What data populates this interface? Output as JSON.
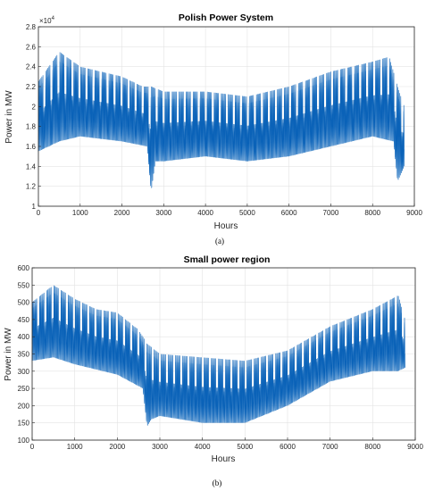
{
  "chart_data": [
    {
      "type": "line",
      "title": "Polish Power System",
      "xlabel": "Hours",
      "ylabel": "Power in MW",
      "exponent_label": "×10",
      "exponent_power": "4",
      "caption": "(a)",
      "xlim": [
        0,
        9000
      ],
      "ylim": [
        1.0,
        2.8
      ],
      "x_ticks": [
        "0",
        "1000",
        "2000",
        "3000",
        "4000",
        "5000",
        "6000",
        "7000",
        "8000",
        "9000"
      ],
      "y_ticks": [
        "1",
        "1.2",
        "1.4",
        "1.6",
        "1.8",
        "2",
        "2.2",
        "2.4",
        "2.6",
        "2.8"
      ],
      "grid": true,
      "series": [
        {
          "color": "#0a62b8",
          "daily_peak": [
            [
              0,
              2.25
            ],
            [
              500,
              2.55
            ],
            [
              1000,
              2.4
            ],
            [
              1500,
              2.35
            ],
            [
              2000,
              2.3
            ],
            [
              2500,
              2.2
            ],
            [
              2700,
              2.2
            ],
            [
              3000,
              2.15
            ],
            [
              4000,
              2.15
            ],
            [
              5000,
              2.1
            ],
            [
              6000,
              2.2
            ],
            [
              7000,
              2.35
            ],
            [
              8000,
              2.45
            ],
            [
              8400,
              2.5
            ],
            [
              8600,
              2.2
            ],
            [
              8760,
              2.0
            ]
          ],
          "daily_trough": [
            [
              0,
              1.55
            ],
            [
              500,
              1.65
            ],
            [
              1000,
              1.7
            ],
            [
              2000,
              1.65
            ],
            [
              2600,
              1.6
            ],
            [
              2700,
              1.15
            ],
            [
              2800,
              1.45
            ],
            [
              3000,
              1.45
            ],
            [
              4000,
              1.5
            ],
            [
              5000,
              1.45
            ],
            [
              6000,
              1.5
            ],
            [
              7000,
              1.6
            ],
            [
              8000,
              1.7
            ],
            [
              8500,
              1.65
            ],
            [
              8600,
              1.25
            ],
            [
              8760,
              1.4
            ]
          ]
        }
      ]
    },
    {
      "type": "line",
      "title": "Small power region",
      "xlabel": "Hours",
      "ylabel": "Power in MW",
      "caption": "(b)",
      "xlim": [
        0,
        9000
      ],
      "ylim": [
        100,
        600
      ],
      "x_ticks": [
        "0",
        "1000",
        "2000",
        "3000",
        "4000",
        "5000",
        "6000",
        "7000",
        "8000",
        "9000"
      ],
      "y_ticks": [
        "100",
        "150",
        "200",
        "250",
        "300",
        "350",
        "400",
        "450",
        "500",
        "550",
        "600"
      ],
      "grid": true,
      "series": [
        {
          "color": "#0a62b8",
          "daily_peak": [
            [
              0,
              500
            ],
            [
              500,
              550
            ],
            [
              1000,
              510
            ],
            [
              1500,
              480
            ],
            [
              2000,
              470
            ],
            [
              2500,
              420
            ],
            [
              2700,
              380
            ],
            [
              3000,
              350
            ],
            [
              4000,
              340
            ],
            [
              5000,
              330
            ],
            [
              6000,
              360
            ],
            [
              7000,
              430
            ],
            [
              8000,
              480
            ],
            [
              8600,
              520
            ],
            [
              8760,
              450
            ]
          ],
          "daily_trough": [
            [
              0,
              330
            ],
            [
              500,
              340
            ],
            [
              1000,
              320
            ],
            [
              2000,
              290
            ],
            [
              2600,
              250
            ],
            [
              2700,
              140
            ],
            [
              2800,
              160
            ],
            [
              3000,
              170
            ],
            [
              4000,
              150
            ],
            [
              5000,
              150
            ],
            [
              6000,
              200
            ],
            [
              7000,
              270
            ],
            [
              8000,
              300
            ],
            [
              8600,
              300
            ],
            [
              8760,
              310
            ]
          ]
        }
      ]
    }
  ]
}
